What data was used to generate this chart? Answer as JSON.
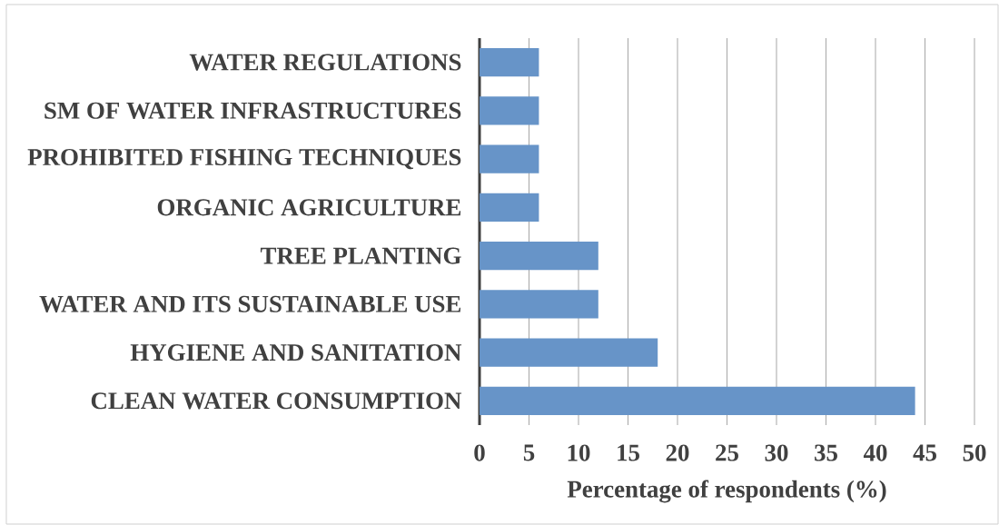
{
  "chart_data": {
    "type": "bar",
    "orientation": "horizontal",
    "categories": [
      "WATER REGULATIONS",
      "SM OF WATER INFRASTRUCTURES",
      "PROHIBITED FISHING TECHNIQUES",
      "ORGANIC AGRICULTURE",
      "TREE PLANTING",
      "WATER AND ITS SUSTAINABLE USE",
      "HYGIENE AND SANITATION",
      "CLEAN WATER CONSUMPTION"
    ],
    "values": [
      6,
      6,
      6,
      6,
      12,
      12,
      18,
      44
    ],
    "color": "#6794c8",
    "xlabel": "Percentage of respondents (%)",
    "xlim": [
      0,
      50
    ],
    "xticks": [
      0,
      5,
      10,
      15,
      20,
      25,
      30,
      35,
      40,
      45,
      50
    ],
    "grid": "x"
  }
}
